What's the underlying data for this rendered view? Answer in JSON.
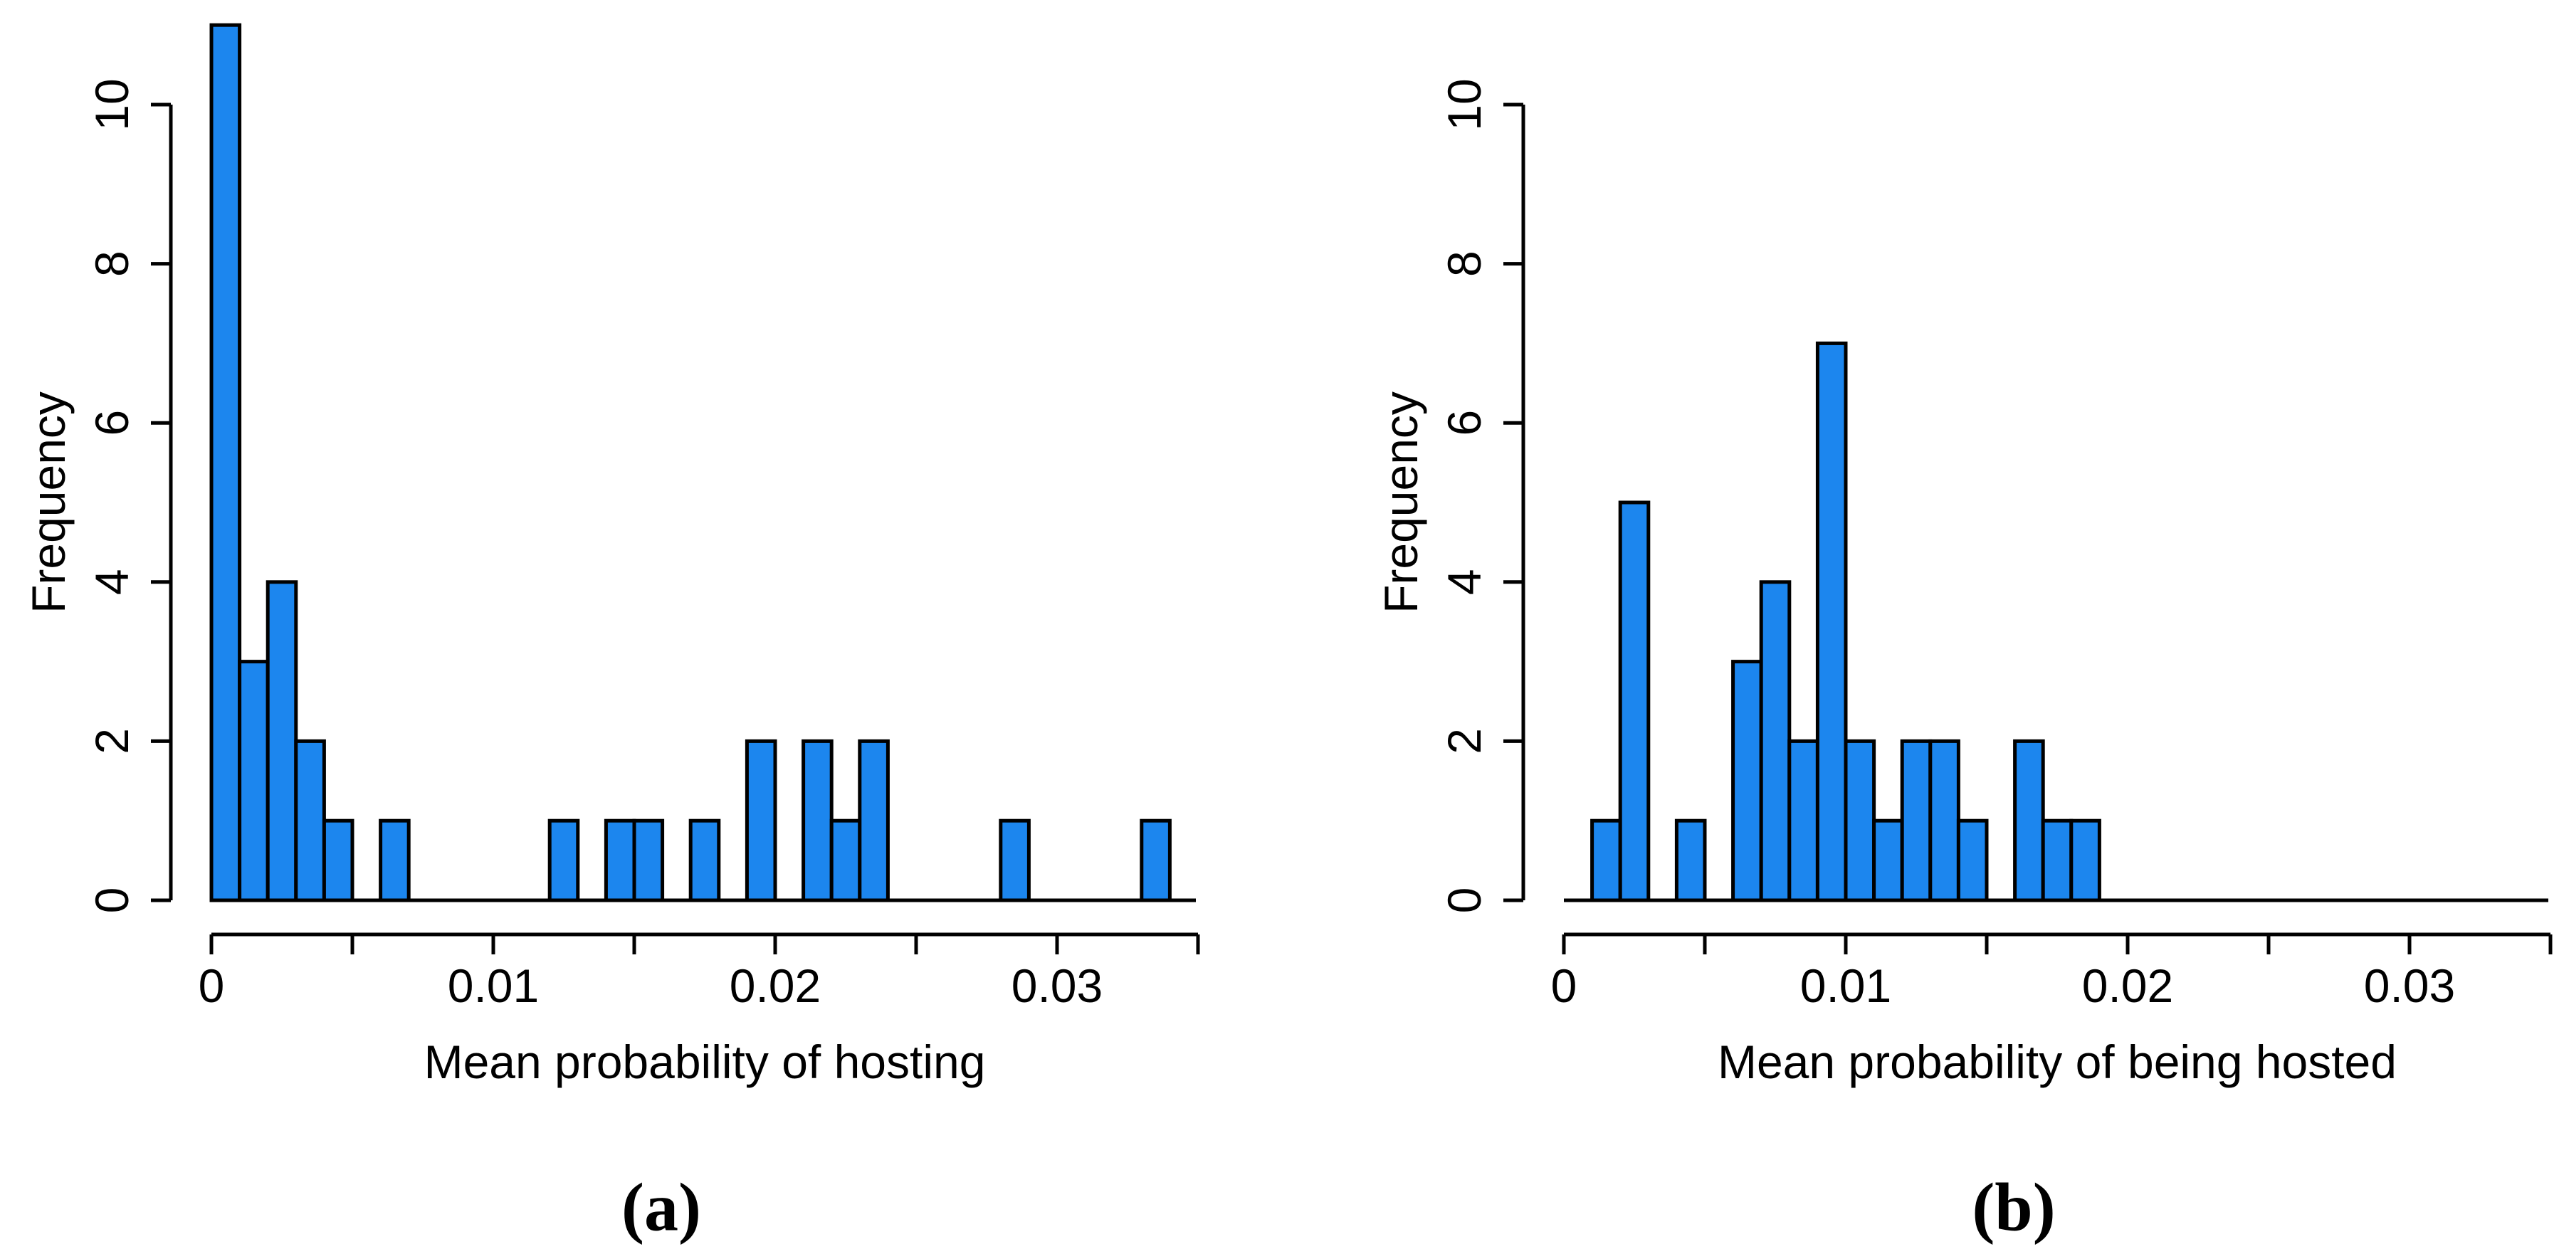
{
  "figure": {
    "background": "#FFFFFF",
    "bar_fill": "#1C86EE",
    "bar_stroke": "#000000",
    "axis_color": "#000000",
    "text_color": "#000000"
  },
  "chart_data": [
    {
      "type": "bar",
      "subtype": "histogram",
      "panel_label": "(a)",
      "title": "",
      "xlabel": "Mean probability of hosting",
      "ylabel": "Frequency",
      "bin_start": 0.0,
      "bin_width": 0.001,
      "counts": [
        11,
        3,
        4,
        2,
        1,
        0,
        1,
        0,
        0,
        0,
        0,
        0,
        1,
        0,
        1,
        1,
        0,
        1,
        0,
        2,
        0,
        2,
        1,
        2,
        0,
        0,
        0,
        0,
        1,
        0,
        0,
        0,
        0,
        1
      ],
      "total_observations": 35,
      "xlim": [
        0,
        0.035
      ],
      "ylim": [
        0,
        10
      ],
      "x_ticks": [
        0,
        0.005,
        0.01,
        0.015,
        0.02,
        0.025,
        0.03,
        0.035
      ],
      "x_tick_labels": [
        "0",
        "",
        "0.01",
        "",
        "0.02",
        "",
        "0.03",
        ""
      ],
      "y_ticks": [
        0,
        2,
        4,
        6,
        8,
        10
      ],
      "y_tick_labels": [
        "0",
        "2",
        "4",
        "6",
        "8",
        "10"
      ],
      "grid": false,
      "legend": "none",
      "bar_color": "#1C86EE"
    },
    {
      "type": "bar",
      "subtype": "histogram",
      "panel_label": "(b)",
      "title": "",
      "xlabel": "Mean probability of being hosted",
      "ylabel": "Frequency",
      "bin_start": 0.0,
      "bin_width": 0.001,
      "counts": [
        0,
        1,
        5,
        0,
        1,
        0,
        3,
        4,
        2,
        7,
        2,
        1,
        2,
        2,
        1,
        0,
        2,
        1,
        1
      ],
      "total_observations": 35,
      "xlim": [
        0,
        0.035
      ],
      "ylim": [
        0,
        10
      ],
      "x_ticks": [
        0,
        0.005,
        0.01,
        0.015,
        0.02,
        0.025,
        0.03,
        0.035
      ],
      "x_tick_labels": [
        "0",
        "",
        "0.01",
        "",
        "0.02",
        "",
        "0.03",
        ""
      ],
      "y_ticks": [
        0,
        2,
        4,
        6,
        8,
        10
      ],
      "y_tick_labels": [
        "0",
        "2",
        "4",
        "6",
        "8",
        "10"
      ],
      "grid": false,
      "legend": "none",
      "bar_color": "#1C86EE"
    }
  ]
}
